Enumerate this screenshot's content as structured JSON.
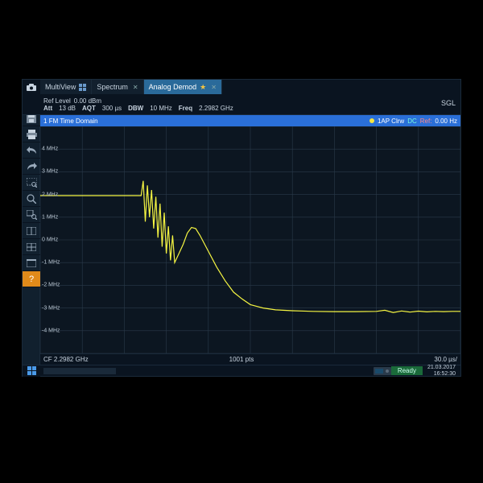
{
  "tabs": {
    "multiview_label": "MultiView",
    "spectrum_label": "Spectrum",
    "analog_label": "Analog Demod"
  },
  "topinfo": {
    "ref_level_label": "Ref Level",
    "ref_level_value": "0.00 dBm",
    "att_label": "Att",
    "att_value": "13 dB",
    "aqt_label": "AQT",
    "aqt_value": "300 µs",
    "dbw_label": "DBW",
    "dbw_value": "10 MHz",
    "freq_label": "Freq",
    "freq_value": "2.2982 GHz",
    "sgl": "SGL"
  },
  "chart": {
    "title_num": "1",
    "title": "FM Time Domain",
    "trace_mode": "1AP Clrw",
    "coupling": "DC",
    "ref_label": "Ref:",
    "ref_value": "0.00 Hz",
    "bg": "#0c1621",
    "grid": "#2a3a4a",
    "trace_color": "#f5f542",
    "ylim": [
      -5,
      5
    ],
    "y_ticks": [
      -4,
      -3,
      -2,
      -1,
      0,
      1,
      2,
      3,
      4
    ],
    "y_tick_labels": [
      "-4 MHz",
      "-3 MHz",
      "-2 MHz",
      "-1 MHz",
      "0 MHz",
      "1 MHz",
      "2 MHz",
      "3 MHz",
      "4 MHz"
    ],
    "x_divisions": 10,
    "y_divisions": 10,
    "points": [
      [
        0.0,
        1.95
      ],
      [
        0.05,
        1.95
      ],
      [
        0.1,
        1.95
      ],
      [
        0.15,
        1.95
      ],
      [
        0.2,
        1.95
      ],
      [
        0.24,
        1.95
      ],
      [
        0.245,
        2.6
      ],
      [
        0.25,
        0.8
      ],
      [
        0.255,
        2.4
      ],
      [
        0.26,
        1.0
      ],
      [
        0.265,
        2.2
      ],
      [
        0.27,
        0.5
      ],
      [
        0.275,
        1.9
      ],
      [
        0.28,
        0.1
      ],
      [
        0.285,
        1.6
      ],
      [
        0.29,
        -0.3
      ],
      [
        0.295,
        1.2
      ],
      [
        0.3,
        -0.6
      ],
      [
        0.305,
        0.6
      ],
      [
        0.31,
        -0.9
      ],
      [
        0.315,
        0.2
      ],
      [
        0.32,
        -1.0
      ],
      [
        0.33,
        -0.6
      ],
      [
        0.34,
        -0.2
      ],
      [
        0.35,
        0.3
      ],
      [
        0.36,
        0.55
      ],
      [
        0.37,
        0.5
      ],
      [
        0.38,
        0.2
      ],
      [
        0.4,
        -0.5
      ],
      [
        0.42,
        -1.2
      ],
      [
        0.44,
        -1.8
      ],
      [
        0.46,
        -2.3
      ],
      [
        0.48,
        -2.6
      ],
      [
        0.5,
        -2.85
      ],
      [
        0.53,
        -3.0
      ],
      [
        0.56,
        -3.08
      ],
      [
        0.6,
        -3.12
      ],
      [
        0.65,
        -3.15
      ],
      [
        0.7,
        -3.16
      ],
      [
        0.75,
        -3.16
      ],
      [
        0.8,
        -3.15
      ],
      [
        0.82,
        -3.1
      ],
      [
        0.84,
        -3.2
      ],
      [
        0.86,
        -3.13
      ],
      [
        0.88,
        -3.18
      ],
      [
        0.9,
        -3.14
      ],
      [
        0.92,
        -3.17
      ],
      [
        0.94,
        -3.15
      ],
      [
        0.96,
        -3.16
      ],
      [
        0.98,
        -3.15
      ],
      [
        1.0,
        -3.15
      ]
    ]
  },
  "footer": {
    "cf_label": "CF",
    "cf_value": "2.2982 GHz",
    "pts": "1001 pts",
    "span": "30.0 µs/"
  },
  "status": {
    "ready": "Ready",
    "date": "21.03.2017",
    "time": "16:52:30"
  },
  "colors": {
    "tab_active_bg": "#2a6a9a",
    "title_bg": "#2a6fd8",
    "help_bg": "#e08a1a",
    "ready_bg": "#1a6a3a"
  }
}
